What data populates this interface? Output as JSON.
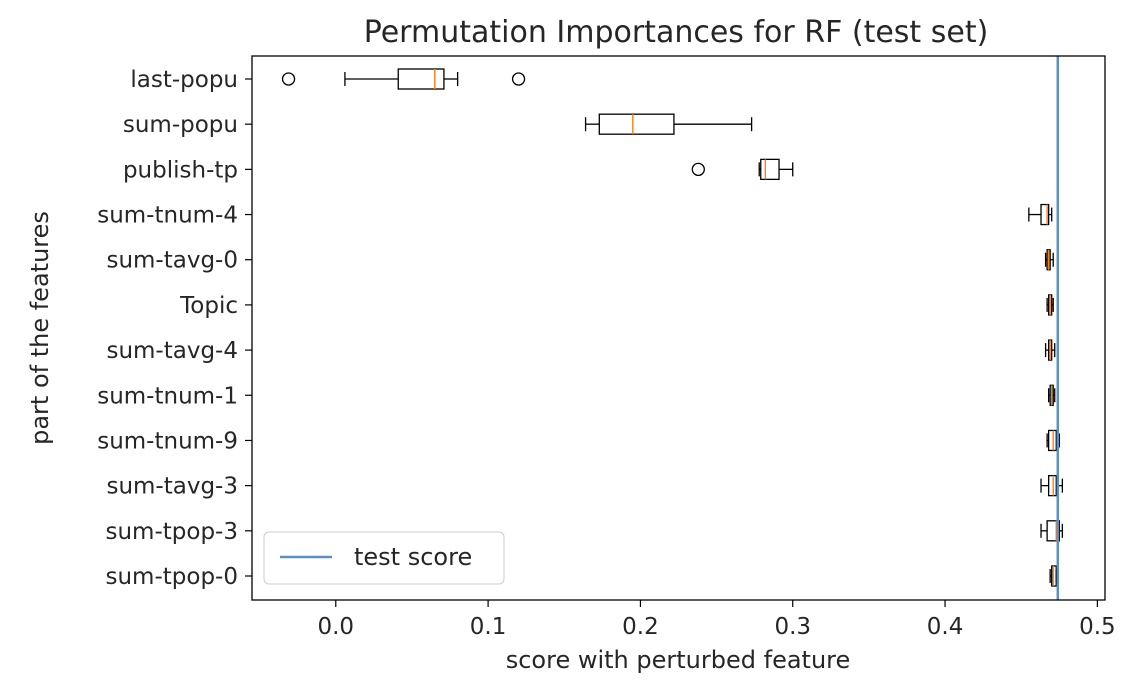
{
  "chart_data": {
    "type": "boxplot",
    "orientation": "horizontal",
    "title": "Permutation Importances for RF (test set)",
    "xlabel": "score with perturbed feature",
    "ylabel": "part of the features",
    "xlim": [
      -0.055,
      0.505
    ],
    "xticks": [
      0.0,
      0.1,
      0.2,
      0.3,
      0.4,
      0.5
    ],
    "xtick_labels": [
      "0.0",
      "0.1",
      "0.2",
      "0.3",
      "0.4",
      "0.5"
    ],
    "grid": false,
    "legend": {
      "position": "lower-left",
      "entries": [
        "test score"
      ]
    },
    "reference_line": {
      "name": "test score",
      "value": 0.474,
      "color": "#5b8fc9"
    },
    "colors": {
      "box": "#000000",
      "median": "#ff7f0e",
      "reference": "#5b8fc9"
    },
    "categories": [
      "last-popu",
      "sum-popu",
      "publish-tp",
      "sum-tnum-4",
      "sum-tavg-0",
      "Topic",
      "sum-tavg-4",
      "sum-tnum-1",
      "sum-tnum-9",
      "sum-tavg-3",
      "sum-tpop-3",
      "sum-tpop-0"
    ],
    "boxes": [
      {
        "feature": "last-popu",
        "whisker_low": 0.006,
        "q1": 0.041,
        "median": 0.065,
        "q3": 0.071,
        "whisker_high": 0.08,
        "outliers": [
          -0.031,
          0.12
        ]
      },
      {
        "feature": "sum-popu",
        "whisker_low": 0.164,
        "q1": 0.173,
        "median": 0.195,
        "q3": 0.222,
        "whisker_high": 0.273,
        "outliers": []
      },
      {
        "feature": "publish-tp",
        "whisker_low": 0.278,
        "q1": 0.279,
        "median": 0.282,
        "q3": 0.291,
        "whisker_high": 0.3,
        "outliers": [
          0.238
        ]
      },
      {
        "feature": "sum-tnum-4",
        "whisker_low": 0.455,
        "q1": 0.463,
        "median": 0.467,
        "q3": 0.468,
        "whisker_high": 0.47,
        "outliers": []
      },
      {
        "feature": "sum-tavg-0",
        "whisker_low": 0.466,
        "q1": 0.467,
        "median": 0.468,
        "q3": 0.469,
        "whisker_high": 0.471,
        "outliers": []
      },
      {
        "feature": "Topic",
        "whisker_low": 0.467,
        "q1": 0.468,
        "median": 0.469,
        "q3": 0.47,
        "whisker_high": 0.471,
        "outliers": []
      },
      {
        "feature": "sum-tavg-4",
        "whisker_low": 0.466,
        "q1": 0.468,
        "median": 0.469,
        "q3": 0.47,
        "whisker_high": 0.472,
        "outliers": []
      },
      {
        "feature": "sum-tnum-1",
        "whisker_low": 0.468,
        "q1": 0.469,
        "median": 0.47,
        "q3": 0.471,
        "whisker_high": 0.472,
        "outliers": []
      },
      {
        "feature": "sum-tnum-9",
        "whisker_low": 0.467,
        "q1": 0.468,
        "median": 0.471,
        "q3": 0.473,
        "whisker_high": 0.475,
        "outliers": []
      },
      {
        "feature": "sum-tavg-3",
        "whisker_low": 0.463,
        "q1": 0.468,
        "median": 0.471,
        "q3": 0.473,
        "whisker_high": 0.477,
        "outliers": []
      },
      {
        "feature": "sum-tpop-3",
        "whisker_low": 0.463,
        "q1": 0.467,
        "median": 0.473,
        "q3": 0.475,
        "whisker_high": 0.477,
        "outliers": []
      },
      {
        "feature": "sum-tpop-0",
        "whisker_low": 0.469,
        "q1": 0.47,
        "median": 0.471,
        "q3": 0.473,
        "whisker_high": 0.473,
        "outliers": []
      }
    ]
  }
}
